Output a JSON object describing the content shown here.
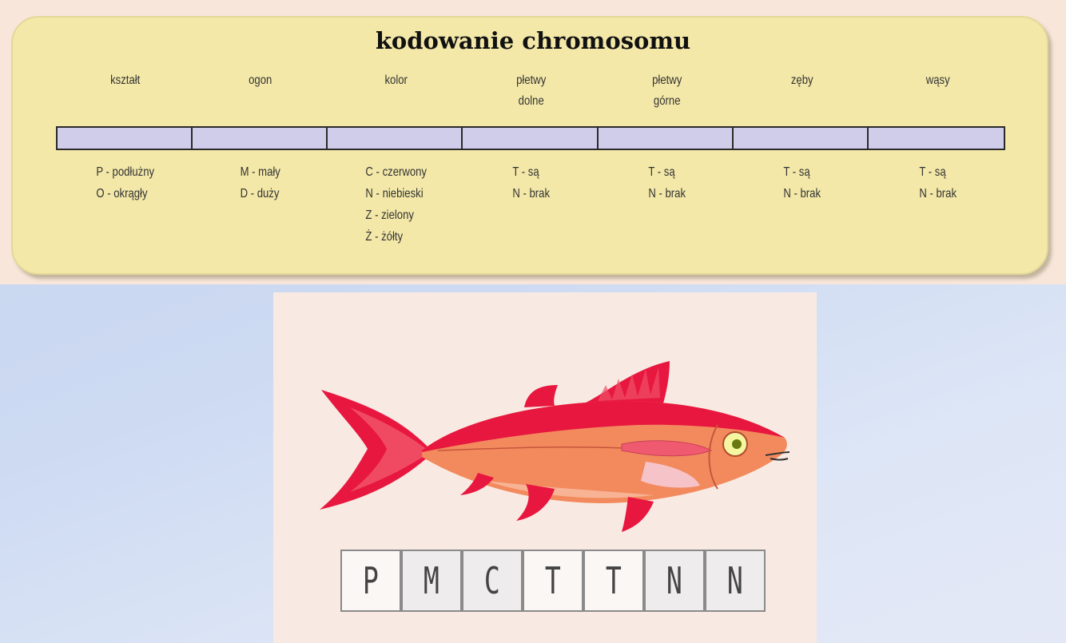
{
  "title": "kodowanie chromosomu",
  "genes": [
    {
      "label": [
        "kształt"
      ],
      "values": [
        "P - podłużny",
        "O - okrągły"
      ]
    },
    {
      "label": [
        "ogon"
      ],
      "values": [
        "M - mały",
        "D - duży"
      ]
    },
    {
      "label": [
        "kolor"
      ],
      "values": [
        "C - czerwony",
        "N - niebieski",
        "Z - zielony",
        "Ż - żółty"
      ]
    },
    {
      "label": [
        "płetwy",
        "dolne"
      ],
      "values": [
        "T - są",
        "N - brak"
      ]
    },
    {
      "label": [
        "płetwy",
        "górne"
      ],
      "values": [
        "T - są",
        "N - brak"
      ]
    },
    {
      "label": [
        "zęby"
      ],
      "values": [
        "T - są",
        "N - brak"
      ]
    },
    {
      "label": [
        "wąsy"
      ],
      "values": [
        "T - są",
        "N - brak"
      ]
    }
  ],
  "example_chromosome": [
    "P",
    "M",
    "C",
    "T",
    "T",
    "N",
    "N"
  ],
  "colors": {
    "panel": "#f3e8a8",
    "gene_bar": "#d0cdea",
    "fish_body": "#f28a5e",
    "fish_accent": "#e8173f"
  },
  "illustration": "fish-illustration"
}
